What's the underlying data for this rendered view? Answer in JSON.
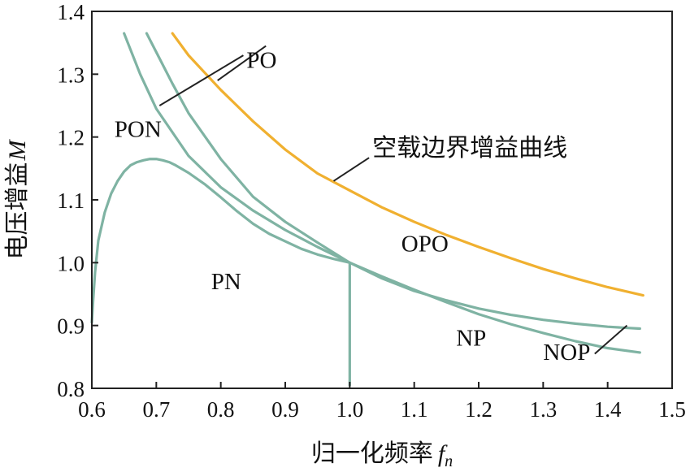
{
  "chart_data": {
    "type": "line",
    "title": "",
    "xlabel": "归一化频率",
    "xlabel_symbol": "f",
    "xlabel_subscript": "n",
    "ylabel": "电压增益",
    "ylabel_symbol": "M",
    "xlim": [
      0.6,
      1.5
    ],
    "ylim": [
      0.8,
      1.4
    ],
    "xticks": [
      "0.6",
      "0.7",
      "0.8",
      "0.9",
      "1.0",
      "1.1",
      "1.2",
      "1.3",
      "1.4",
      "1.5"
    ],
    "yticks": [
      "0.8",
      "0.9",
      "1.0",
      "1.1",
      "1.2",
      "1.3",
      "1.4"
    ],
    "grid": false,
    "colors": {
      "gain": "#7fb3a3",
      "boundary": "#f0b030",
      "axis": "#222222",
      "text": "#111111"
    },
    "series": [
      {
        "name": "空载边界增益曲线",
        "color": "#f0b030",
        "x": [
          0.725,
          0.75,
          0.8,
          0.85,
          0.9,
          0.95,
          1.0,
          1.05,
          1.1,
          1.15,
          1.2,
          1.25,
          1.3,
          1.35,
          1.4,
          1.455
        ],
        "y": [
          1.365,
          1.33,
          1.275,
          1.225,
          1.18,
          1.142,
          1.115,
          1.088,
          1.065,
          1.044,
          1.025,
          1.007,
          0.99,
          0.975,
          0.961,
          0.948
        ]
      },
      {
        "name": "",
        "color": "#7fb3a3",
        "x": [
          0.65,
          0.675,
          0.7,
          0.75,
          0.8,
          0.85,
          0.9,
          0.95,
          1.0,
          1.05,
          1.1,
          1.15,
          1.2,
          1.25,
          1.3,
          1.35,
          1.4,
          1.45
        ],
        "y": [
          1.365,
          1.3,
          1.245,
          1.17,
          1.12,
          1.083,
          1.052,
          1.025,
          1.0,
          0.978,
          0.957,
          0.937,
          0.918,
          0.902,
          0.888,
          0.875,
          0.864,
          0.857
        ]
      },
      {
        "name": "",
        "color": "#7fb3a3",
        "x": [
          0.685,
          0.7,
          0.725,
          0.75,
          0.8,
          0.85,
          0.9,
          0.95,
          1.0,
          1.05,
          1.1,
          1.15,
          1.2,
          1.25,
          1.3,
          1.35,
          1.4,
          1.45
        ],
        "y": [
          1.365,
          1.335,
          1.285,
          1.238,
          1.165,
          1.105,
          1.065,
          1.032,
          1.0,
          0.975,
          0.955,
          0.94,
          0.927,
          0.917,
          0.909,
          0.903,
          0.898,
          0.895
        ]
      },
      {
        "name": "",
        "color": "#7fb3a3",
        "x": [
          0.6,
          0.602,
          0.605,
          0.61,
          0.62,
          0.63,
          0.64,
          0.65,
          0.66,
          0.67,
          0.68,
          0.69,
          0.7,
          0.71,
          0.72,
          0.73,
          0.75,
          0.775,
          0.8,
          0.825,
          0.85,
          0.875,
          0.9,
          0.925,
          0.95,
          0.975,
          1.0
        ],
        "y": [
          0.905,
          0.94,
          0.985,
          1.035,
          1.08,
          1.11,
          1.13,
          1.145,
          1.155,
          1.16,
          1.163,
          1.165,
          1.165,
          1.163,
          1.16,
          1.155,
          1.143,
          1.125,
          1.104,
          1.082,
          1.062,
          1.046,
          1.034,
          1.022,
          1.013,
          1.006,
          1.0
        ]
      },
      {
        "name": "",
        "color": "#7fb3a3",
        "x": [
          1.0,
          1.0
        ],
        "y": [
          1.0,
          0.805
        ]
      }
    ],
    "annotations": [
      {
        "text": "PO",
        "x": 0.84,
        "y": 1.31
      },
      {
        "text": "PON",
        "x": 0.635,
        "y": 1.2
      },
      {
        "text": "空载边界增益曲线",
        "x": 1.035,
        "y": 1.17
      },
      {
        "text": "OPO",
        "x": 1.08,
        "y": 1.018
      },
      {
        "text": "PN",
        "x": 0.785,
        "y": 0.958
      },
      {
        "text": "NP",
        "x": 1.165,
        "y": 0.868
      },
      {
        "text": "NOP",
        "x": 1.3,
        "y": 0.845
      }
    ],
    "leader_lines": [
      {
        "from": [
          0.795,
          1.29
        ],
        "to": [
          0.87,
          1.345
        ]
      },
      {
        "from": [
          0.705,
          1.25
        ],
        "to": [
          0.835,
          1.33
        ]
      },
      {
        "from": [
          0.975,
          1.13
        ],
        "to": [
          1.03,
          1.167
        ]
      },
      {
        "from": [
          1.38,
          0.855
        ],
        "to": [
          1.43,
          0.9
        ]
      }
    ]
  }
}
